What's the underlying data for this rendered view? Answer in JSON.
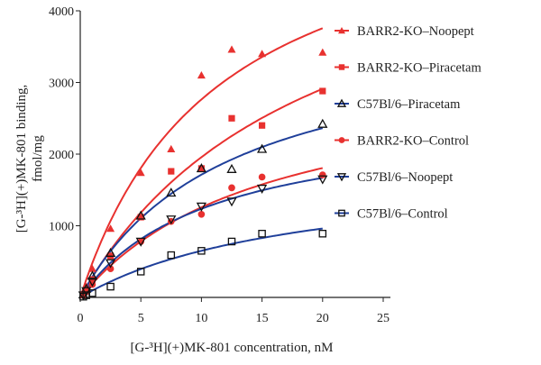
{
  "chart_data": {
    "type": "scatter",
    "title": "",
    "xlabel": "[G-³H](+)MK-801 concentration, nM",
    "ylabel_line1": "[G-³H](+)MK-801 binding,",
    "ylabel_line2": "fmol/mg",
    "xlim": [
      0,
      25
    ],
    "ylim": [
      0,
      4000
    ],
    "xticks": [
      0,
      5,
      10,
      15,
      20,
      25
    ],
    "yticks": [
      1000,
      2000,
      3000,
      4000
    ],
    "grid": false,
    "legend_position": "right",
    "fit": "hyperbolic saturation curve per series",
    "series": [
      {
        "name": "BARR2-KO–Noopept",
        "marker": "triangle-up-filled",
        "color": "#e8312f",
        "line_color": "#e8312f",
        "x": [
          0.25,
          0.5,
          1,
          2.5,
          5,
          7.5,
          10,
          12.5,
          15,
          20
        ],
        "y": [
          50,
          150,
          400,
          960,
          1740,
          2070,
          3100,
          3460,
          3400,
          3420
        ]
      },
      {
        "name": "BARR2-KO–Piracetam",
        "marker": "square-filled",
        "color": "#e8312f",
        "line_color": "#e8312f",
        "x": [
          0.25,
          0.5,
          1,
          2.5,
          5,
          7.5,
          10,
          12.5,
          15,
          20
        ],
        "y": [
          40,
          100,
          250,
          580,
          1120,
          1760,
          1800,
          2500,
          2400,
          2880
        ]
      },
      {
        "name": "C57Bl/6–Piracetam",
        "marker": "triangle-up-open",
        "color": "#111111",
        "line_color": "#1f3f9a",
        "x": [
          0.25,
          0.5,
          1,
          2.5,
          5,
          7.5,
          10,
          12.5,
          15,
          20
        ],
        "y": [
          40,
          120,
          300,
          620,
          1140,
          1460,
          1800,
          1790,
          2070,
          2420
        ]
      },
      {
        "name": "BARR2-KO–Control",
        "marker": "circle-filled",
        "color": "#e8312f",
        "line_color": "#e8312f",
        "x": [
          0.25,
          0.5,
          1,
          2.5,
          5,
          7.5,
          10,
          12.5,
          15,
          20
        ],
        "y": [
          30,
          80,
          180,
          400,
          780,
          1060,
          1160,
          1530,
          1680,
          1710
        ]
      },
      {
        "name": "C57Bl/6–Noopept",
        "marker": "triangle-down-open",
        "color": "#111111",
        "line_color": "#1f3f9a",
        "x": [
          0.25,
          0.5,
          1,
          2.5,
          5,
          7.5,
          10,
          12.5,
          15,
          20
        ],
        "y": [
          30,
          90,
          220,
          480,
          780,
          1090,
          1270,
          1340,
          1520,
          1650
        ]
      },
      {
        "name": "C57Bl/6–Control",
        "marker": "square-open",
        "color": "#111111",
        "line_color": "#1f3f9a",
        "x": [
          0.25,
          0.5,
          1,
          2.5,
          5,
          7.5,
          10,
          12.5,
          15,
          20
        ],
        "y": [
          10,
          30,
          60,
          150,
          360,
          590,
          650,
          780,
          890,
          890
        ]
      }
    ]
  }
}
